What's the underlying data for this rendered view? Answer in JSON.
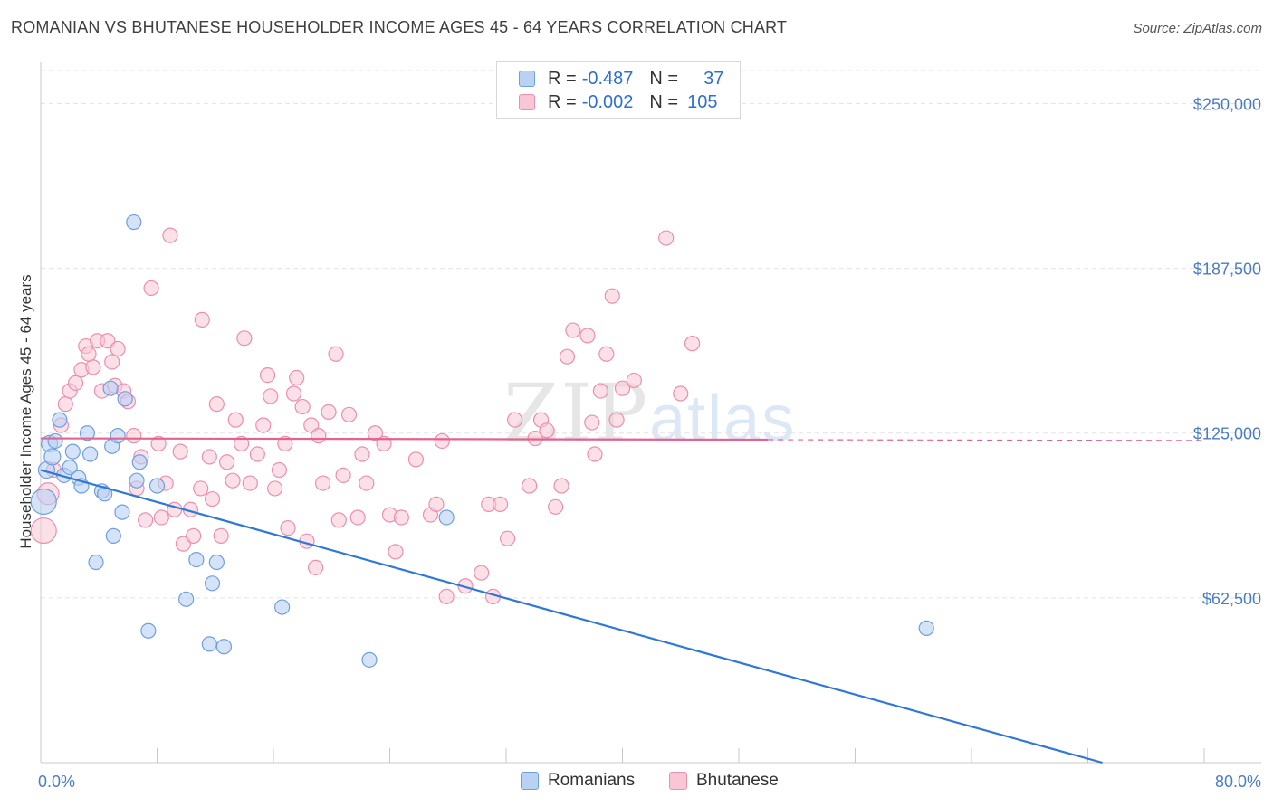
{
  "title": "ROMANIAN VS BHUTANESE HOUSEHOLDER INCOME AGES 45 - 64 YEARS CORRELATION CHART",
  "source": "Source: ZipAtlas.com",
  "watermark": {
    "zip": "ZIP",
    "atlas": "atlas"
  },
  "legend": {
    "rows": [
      {
        "r_label": "R =",
        "r_value": "-0.487",
        "n_label": "N =",
        "n_value": "37"
      },
      {
        "r_label": "R =",
        "r_value": "-0.002",
        "n_label": "N =",
        "n_value": "105"
      }
    ]
  },
  "bottom_legend": {
    "series1": "Romanians",
    "series2": "Bhutanese"
  },
  "colors": {
    "blue_fill": "#b9d1f3",
    "blue_stroke": "#6f9fe0",
    "blue_line": "#2f78d6",
    "pink_fill": "#f9c6d6",
    "pink_stroke": "#eb8fae",
    "pink_line": "#e5628e",
    "grid": "#e3e3e3",
    "tick_text": "#4a7cc9"
  },
  "chart_data": {
    "type": "scatter",
    "title": "ROMANIAN VS BHUTANESE HOUSEHOLDER INCOME AGES 45 - 64 YEARS CORRELATION CHART",
    "xlabel": "",
    "ylabel": "Householder Income Ages 45 - 64 years",
    "xlim": [
      0,
      80
    ],
    "ylim": [
      0,
      262500
    ],
    "x_tick_labels": [
      "0.0%",
      "80.0%"
    ],
    "y_ticks": [
      62500,
      125000,
      187500,
      250000
    ],
    "y_tick_labels": [
      "$62,500",
      "$125,000",
      "$187,500",
      "$250,000"
    ],
    "series": [
      {
        "name": "Romanians",
        "R": -0.487,
        "N": 37,
        "trend": {
          "x0": 0,
          "y0": 111000,
          "x1": 73,
          "y1": 0
        },
        "points": [
          {
            "x": 0.2,
            "y": 99000,
            "s": 14
          },
          {
            "x": 0.4,
            "y": 111000,
            "s": 9
          },
          {
            "x": 0.6,
            "y": 121000,
            "s": 9
          },
          {
            "x": 0.8,
            "y": 116000,
            "s": 9
          },
          {
            "x": 1.0,
            "y": 122000,
            "s": 8
          },
          {
            "x": 1.3,
            "y": 130000,
            "s": 8
          },
          {
            "x": 1.6,
            "y": 109000,
            "s": 8
          },
          {
            "x": 2.0,
            "y": 112000,
            "s": 8
          },
          {
            "x": 2.2,
            "y": 118000,
            "s": 8
          },
          {
            "x": 2.6,
            "y": 108000,
            "s": 8
          },
          {
            "x": 2.8,
            "y": 105000,
            "s": 8
          },
          {
            "x": 3.2,
            "y": 125000,
            "s": 8
          },
          {
            "x": 3.4,
            "y": 117000,
            "s": 8
          },
          {
            "x": 3.8,
            "y": 76000,
            "s": 8
          },
          {
            "x": 4.2,
            "y": 103000,
            "s": 8
          },
          {
            "x": 4.4,
            "y": 102000,
            "s": 8
          },
          {
            "x": 4.8,
            "y": 142000,
            "s": 8
          },
          {
            "x": 4.9,
            "y": 120000,
            "s": 8
          },
          {
            "x": 5.0,
            "y": 86000,
            "s": 8
          },
          {
            "x": 5.3,
            "y": 124000,
            "s": 8
          },
          {
            "x": 5.6,
            "y": 95000,
            "s": 8
          },
          {
            "x": 5.8,
            "y": 138000,
            "s": 8
          },
          {
            "x": 6.4,
            "y": 205000,
            "s": 8
          },
          {
            "x": 6.6,
            "y": 107000,
            "s": 8
          },
          {
            "x": 6.8,
            "y": 114000,
            "s": 8
          },
          {
            "x": 7.4,
            "y": 50000,
            "s": 8
          },
          {
            "x": 8.0,
            "y": 105000,
            "s": 8
          },
          {
            "x": 10.0,
            "y": 62000,
            "s": 8
          },
          {
            "x": 10.7,
            "y": 77000,
            "s": 8
          },
          {
            "x": 11.6,
            "y": 45000,
            "s": 8
          },
          {
            "x": 11.8,
            "y": 68000,
            "s": 8
          },
          {
            "x": 12.1,
            "y": 76000,
            "s": 8
          },
          {
            "x": 12.6,
            "y": 44000,
            "s": 8
          },
          {
            "x": 16.6,
            "y": 59000,
            "s": 8
          },
          {
            "x": 22.6,
            "y": 39000,
            "s": 8
          },
          {
            "x": 27.9,
            "y": 93000,
            "s": 8
          },
          {
            "x": 60.9,
            "y": 51000,
            "s": 8
          }
        ]
      },
      {
        "name": "Bhutanese",
        "R": -0.002,
        "N": 105,
        "trend": {
          "x0": 0,
          "y0": 123000,
          "x1": 50,
          "y1": 122500,
          "dash_to": 80
        },
        "points": [
          {
            "x": 0.2,
            "y": 88000,
            "s": 14
          },
          {
            "x": 0.5,
            "y": 102000,
            "s": 12
          },
          {
            "x": 0.9,
            "y": 111000,
            "s": 8
          },
          {
            "x": 1.4,
            "y": 128000,
            "s": 8
          },
          {
            "x": 1.7,
            "y": 136000,
            "s": 8
          },
          {
            "x": 2.0,
            "y": 141000,
            "s": 8
          },
          {
            "x": 2.4,
            "y": 144000,
            "s": 8
          },
          {
            "x": 2.8,
            "y": 149000,
            "s": 8
          },
          {
            "x": 3.1,
            "y": 158000,
            "s": 8
          },
          {
            "x": 3.3,
            "y": 155000,
            "s": 8
          },
          {
            "x": 3.6,
            "y": 150000,
            "s": 8
          },
          {
            "x": 3.9,
            "y": 160000,
            "s": 8
          },
          {
            "x": 4.2,
            "y": 141000,
            "s": 8
          },
          {
            "x": 4.6,
            "y": 160000,
            "s": 8
          },
          {
            "x": 4.9,
            "y": 152000,
            "s": 8
          },
          {
            "x": 5.1,
            "y": 143000,
            "s": 8
          },
          {
            "x": 5.3,
            "y": 157000,
            "s": 8
          },
          {
            "x": 5.7,
            "y": 141000,
            "s": 8
          },
          {
            "x": 6.0,
            "y": 137000,
            "s": 8
          },
          {
            "x": 6.4,
            "y": 124000,
            "s": 8
          },
          {
            "x": 6.6,
            "y": 104000,
            "s": 8
          },
          {
            "x": 6.9,
            "y": 116000,
            "s": 8
          },
          {
            "x": 7.2,
            "y": 92000,
            "s": 8
          },
          {
            "x": 7.6,
            "y": 180000,
            "s": 8
          },
          {
            "x": 8.1,
            "y": 121000,
            "s": 8
          },
          {
            "x": 8.3,
            "y": 93000,
            "s": 8
          },
          {
            "x": 8.6,
            "y": 106000,
            "s": 8
          },
          {
            "x": 8.9,
            "y": 200000,
            "s": 8
          },
          {
            "x": 9.2,
            "y": 96000,
            "s": 8
          },
          {
            "x": 9.6,
            "y": 118000,
            "s": 8
          },
          {
            "x": 9.8,
            "y": 83000,
            "s": 8
          },
          {
            "x": 10.3,
            "y": 96000,
            "s": 8
          },
          {
            "x": 10.5,
            "y": 86000,
            "s": 8
          },
          {
            "x": 11.0,
            "y": 104000,
            "s": 8
          },
          {
            "x": 11.1,
            "y": 168000,
            "s": 8
          },
          {
            "x": 11.6,
            "y": 116000,
            "s": 8
          },
          {
            "x": 11.8,
            "y": 100000,
            "s": 8
          },
          {
            "x": 12.1,
            "y": 136000,
            "s": 8
          },
          {
            "x": 12.4,
            "y": 86000,
            "s": 8
          },
          {
            "x": 12.8,
            "y": 114000,
            "s": 8
          },
          {
            "x": 13.2,
            "y": 107000,
            "s": 8
          },
          {
            "x": 13.4,
            "y": 130000,
            "s": 8
          },
          {
            "x": 13.8,
            "y": 121000,
            "s": 8
          },
          {
            "x": 14.0,
            "y": 161000,
            "s": 8
          },
          {
            "x": 14.4,
            "y": 106000,
            "s": 8
          },
          {
            "x": 14.9,
            "y": 117000,
            "s": 8
          },
          {
            "x": 15.3,
            "y": 128000,
            "s": 8
          },
          {
            "x": 15.6,
            "y": 147000,
            "s": 8
          },
          {
            "x": 15.8,
            "y": 139000,
            "s": 8
          },
          {
            "x": 16.1,
            "y": 104000,
            "s": 8
          },
          {
            "x": 16.4,
            "y": 111000,
            "s": 8
          },
          {
            "x": 16.8,
            "y": 121000,
            "s": 8
          },
          {
            "x": 17.0,
            "y": 89000,
            "s": 8
          },
          {
            "x": 17.4,
            "y": 140000,
            "s": 8
          },
          {
            "x": 17.6,
            "y": 146000,
            "s": 8
          },
          {
            "x": 18.0,
            "y": 135000,
            "s": 8
          },
          {
            "x": 18.3,
            "y": 84000,
            "s": 8
          },
          {
            "x": 18.6,
            "y": 128000,
            "s": 8
          },
          {
            "x": 18.9,
            "y": 74000,
            "s": 8
          },
          {
            "x": 19.1,
            "y": 124000,
            "s": 8
          },
          {
            "x": 19.4,
            "y": 106000,
            "s": 8
          },
          {
            "x": 19.8,
            "y": 133000,
            "s": 8
          },
          {
            "x": 20.3,
            "y": 155000,
            "s": 8
          },
          {
            "x": 20.5,
            "y": 92000,
            "s": 8
          },
          {
            "x": 20.8,
            "y": 109000,
            "s": 8
          },
          {
            "x": 21.2,
            "y": 132000,
            "s": 8
          },
          {
            "x": 21.8,
            "y": 93000,
            "s": 8
          },
          {
            "x": 22.1,
            "y": 117000,
            "s": 8
          },
          {
            "x": 22.4,
            "y": 106000,
            "s": 8
          },
          {
            "x": 23.0,
            "y": 125000,
            "s": 8
          },
          {
            "x": 23.6,
            "y": 121000,
            "s": 8
          },
          {
            "x": 24.0,
            "y": 94000,
            "s": 8
          },
          {
            "x": 24.4,
            "y": 80000,
            "s": 8
          },
          {
            "x": 24.8,
            "y": 93000,
            "s": 8
          },
          {
            "x": 25.8,
            "y": 115000,
            "s": 8
          },
          {
            "x": 26.8,
            "y": 94000,
            "s": 8
          },
          {
            "x": 27.2,
            "y": 98000,
            "s": 8
          },
          {
            "x": 27.6,
            "y": 122000,
            "s": 8
          },
          {
            "x": 27.9,
            "y": 63000,
            "s": 8
          },
          {
            "x": 29.2,
            "y": 67000,
            "s": 8
          },
          {
            "x": 30.3,
            "y": 72000,
            "s": 8
          },
          {
            "x": 30.8,
            "y": 98000,
            "s": 8
          },
          {
            "x": 31.1,
            "y": 63000,
            "s": 8
          },
          {
            "x": 31.6,
            "y": 98000,
            "s": 8
          },
          {
            "x": 32.1,
            "y": 85000,
            "s": 8
          },
          {
            "x": 32.6,
            "y": 130000,
            "s": 8
          },
          {
            "x": 33.6,
            "y": 105000,
            "s": 8
          },
          {
            "x": 34.0,
            "y": 123000,
            "s": 8
          },
          {
            "x": 34.4,
            "y": 130000,
            "s": 8
          },
          {
            "x": 34.8,
            "y": 126000,
            "s": 8
          },
          {
            "x": 35.4,
            "y": 97000,
            "s": 8
          },
          {
            "x": 35.8,
            "y": 105000,
            "s": 8
          },
          {
            "x": 36.2,
            "y": 154000,
            "s": 8
          },
          {
            "x": 36.6,
            "y": 164000,
            "s": 8
          },
          {
            "x": 37.6,
            "y": 162000,
            "s": 8
          },
          {
            "x": 37.9,
            "y": 129000,
            "s": 8
          },
          {
            "x": 38.1,
            "y": 117000,
            "s": 8
          },
          {
            "x": 38.5,
            "y": 141000,
            "s": 8
          },
          {
            "x": 38.9,
            "y": 155000,
            "s": 8
          },
          {
            "x": 39.3,
            "y": 177000,
            "s": 8
          },
          {
            "x": 39.6,
            "y": 130000,
            "s": 8
          },
          {
            "x": 40.0,
            "y": 142000,
            "s": 8
          },
          {
            "x": 40.8,
            "y": 145000,
            "s": 8
          },
          {
            "x": 43.0,
            "y": 199000,
            "s": 8
          },
          {
            "x": 44.0,
            "y": 140000,
            "s": 8
          },
          {
            "x": 44.8,
            "y": 159000,
            "s": 8
          }
        ]
      }
    ]
  }
}
